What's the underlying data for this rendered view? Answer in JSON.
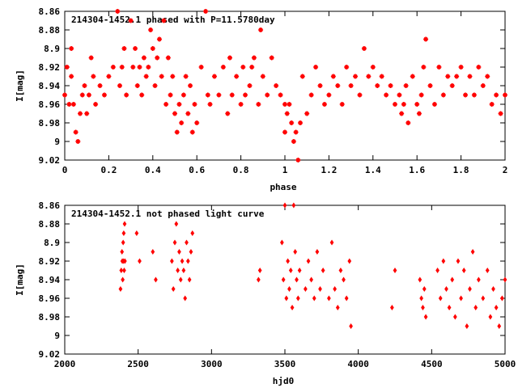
{
  "chart_data": [
    {
      "type": "scatter",
      "title": "214304-1452.1 phased with P=11.5780day",
      "xlabel": "phase",
      "ylabel": "I[mag]",
      "xlim": [
        0,
        2
      ],
      "ylim": [
        9.02,
        8.86
      ],
      "y_inverted": true,
      "grid": false,
      "marker": "plus",
      "color": "#ff0000",
      "xticks": [
        0,
        0.2,
        0.4,
        0.6,
        0.8,
        1,
        1.2,
        1.4,
        1.6,
        1.8,
        2
      ],
      "xtick_labels": [
        "0",
        "0.2",
        "0.4",
        "0.6",
        "0.8",
        "1",
        "1.2",
        "1.4",
        "1.6",
        "1.8",
        "2"
      ],
      "yticks": [
        8.86,
        8.88,
        8.9,
        8.92,
        8.94,
        8.96,
        8.98,
        9,
        9.02
      ],
      "ytick_labels": [
        "8.86",
        "8.88",
        "8.9",
        "8.92",
        "8.94",
        "8.96",
        "8.98",
        "9",
        "9.02"
      ],
      "x": [
        0.0,
        0.01,
        0.02,
        0.03,
        0.03,
        0.04,
        0.05,
        0.06,
        0.07,
        0.08,
        0.09,
        0.1,
        0.11,
        0.12,
        0.13,
        0.14,
        0.16,
        0.18,
        0.2,
        0.22,
        0.24,
        0.25,
        0.26,
        0.27,
        0.28,
        0.3,
        0.31,
        0.32,
        0.33,
        0.34,
        0.35,
        0.36,
        0.37,
        0.38,
        0.39,
        0.4,
        0.41,
        0.42,
        0.43,
        0.44,
        0.45,
        0.46,
        0.47,
        0.48,
        0.49,
        0.5,
        0.51,
        0.52,
        0.53,
        0.54,
        0.55,
        0.56,
        0.57,
        0.58,
        0.59,
        0.6,
        0.62,
        0.64,
        0.65,
        0.66,
        0.68,
        0.7,
        0.72,
        0.74,
        0.75,
        0.76,
        0.78,
        0.8,
        0.81,
        0.82,
        0.84,
        0.85,
        0.86,
        0.88,
        0.89,
        0.9,
        0.92,
        0.94,
        0.96,
        0.98,
        1.0,
        1.0,
        1.01,
        1.02,
        1.03,
        1.04,
        1.05,
        1.06,
        1.07,
        1.08,
        1.1,
        1.12,
        1.14,
        1.16,
        1.18,
        1.2,
        1.22,
        1.24,
        1.26,
        1.28,
        1.3,
        1.32,
        1.34,
        1.36,
        1.38,
        1.4,
        1.42,
        1.44,
        1.46,
        1.48,
        1.5,
        1.52,
        1.53,
        1.54,
        1.55,
        1.56,
        1.58,
        1.6,
        1.61,
        1.62,
        1.63,
        1.64,
        1.66,
        1.68,
        1.7,
        1.72,
        1.74,
        1.76,
        1.78,
        1.8,
        1.82,
        1.84,
        1.86,
        1.88,
        1.9,
        1.92,
        1.94,
        1.96,
        1.98,
        2.0
      ],
      "y": [
        8.95,
        8.92,
        8.96,
        8.9,
        8.93,
        8.96,
        8.99,
        9.0,
        8.97,
        8.95,
        8.94,
        8.97,
        8.95,
        8.91,
        8.93,
        8.96,
        8.94,
        8.95,
        8.93,
        8.92,
        8.86,
        8.94,
        8.92,
        8.9,
        8.95,
        8.87,
        8.92,
        8.9,
        8.94,
        8.92,
        8.95,
        8.91,
        8.93,
        8.92,
        8.88,
        8.9,
        8.94,
        8.91,
        8.89,
        8.93,
        8.87,
        8.96,
        8.91,
        8.95,
        8.93,
        8.97,
        8.99,
        8.96,
        8.98,
        8.95,
        8.93,
        8.97,
        8.94,
        8.99,
        8.96,
        8.98,
        8.92,
        8.86,
        8.95,
        8.96,
        8.93,
        8.95,
        8.92,
        8.97,
        8.91,
        8.95,
        8.93,
        8.96,
        8.92,
        8.95,
        8.94,
        8.92,
        8.91,
        8.96,
        8.88,
        8.93,
        8.95,
        8.91,
        8.94,
        8.95,
        8.96,
        8.99,
        8.97,
        8.96,
        8.98,
        9.0,
        8.99,
        9.02,
        8.98,
        8.93,
        8.97,
        8.95,
        8.92,
        8.94,
        8.96,
        8.95,
        8.93,
        8.94,
        8.96,
        8.92,
        8.94,
        8.93,
        8.95,
        8.9,
        8.93,
        8.92,
        8.94,
        8.93,
        8.95,
        8.94,
        8.96,
        8.95,
        8.97,
        8.96,
        8.94,
        8.98,
        8.93,
        8.96,
        8.97,
        8.95,
        8.92,
        8.89,
        8.94,
        8.96,
        8.92,
        8.95,
        8.93,
        8.94,
        8.93,
        8.92,
        8.95,
        8.93,
        8.95,
        8.92,
        8.94,
        8.93,
        8.96,
        8.95,
        8.97,
        8.95
      ]
    },
    {
      "type": "scatter",
      "title": "214304-1452.1 not phased light curve",
      "xlabel": "hjd0",
      "ylabel": "I[mag]",
      "xlim": [
        2000,
        5000
      ],
      "ylim": [
        9.02,
        8.86
      ],
      "y_inverted": true,
      "grid": false,
      "marker": "diamond",
      "color": "#ff0000",
      "xticks": [
        2000,
        2500,
        3000,
        3500,
        4000,
        4500,
        5000
      ],
      "xtick_labels": [
        "2000",
        "2500",
        "3000",
        "3500",
        "4000",
        "4500",
        "5000"
      ],
      "yticks": [
        8.86,
        8.88,
        8.9,
        8.92,
        8.94,
        8.96,
        8.98,
        9,
        9.02
      ],
      "ytick_labels": [
        "8.86",
        "8.88",
        "8.9",
        "8.92",
        "8.94",
        "8.96",
        "8.98",
        "9",
        "9.02"
      ],
      "x": [
        2380,
        2385,
        2390,
        2392,
        2395,
        2398,
        2400,
        2402,
        2405,
        2408,
        2410,
        2490,
        2510,
        2600,
        2620,
        2730,
        2740,
        2750,
        2760,
        2770,
        2780,
        2790,
        2800,
        2810,
        2820,
        2830,
        2840,
        2850,
        2860,
        2870,
        3320,
        3330,
        3480,
        3490,
        3500,
        3510,
        3520,
        3530,
        3540,
        3550,
        3560,
        3570,
        3580,
        3590,
        3600,
        3640,
        3660,
        3680,
        3700,
        3720,
        3740,
        3760,
        3800,
        3820,
        3840,
        3860,
        3880,
        3900,
        3920,
        3940,
        3950,
        4230,
        4250,
        4420,
        4430,
        4440,
        4450,
        4460,
        4540,
        4560,
        4580,
        4600,
        4620,
        4640,
        4660,
        4680,
        4700,
        4720,
        4740,
        4760,
        4780,
        4800,
        4820,
        4850,
        4880,
        4900,
        4920,
        4940,
        4960,
        4980,
        5000
      ],
      "y": [
        8.95,
        8.93,
        8.91,
        8.92,
        8.94,
        8.9,
        8.92,
        8.89,
        8.93,
        8.88,
        8.92,
        8.89,
        8.92,
        8.91,
        8.94,
        8.92,
        8.95,
        8.9,
        8.88,
        8.93,
        8.91,
        8.94,
        8.92,
        8.93,
        8.96,
        8.9,
        8.92,
        8.94,
        8.91,
        8.89,
        8.94,
        8.93,
        8.9,
        8.94,
        8.86,
        8.96,
        8.92,
        8.95,
        8.93,
        8.97,
        8.86,
        8.91,
        8.94,
        8.96,
        8.93,
        8.95,
        8.92,
        8.94,
        8.96,
        8.91,
        8.95,
        8.93,
        8.96,
        8.9,
        8.95,
        8.97,
        8.93,
        8.94,
        8.96,
        8.92,
        8.99,
        8.97,
        8.93,
        8.94,
        8.96,
        8.97,
        8.95,
        8.98,
        8.93,
        8.96,
        8.92,
        8.95,
        8.97,
        8.94,
        8.98,
        8.92,
        8.96,
        8.93,
        8.99,
        8.95,
        8.91,
        8.97,
        8.94,
        8.96,
        8.93,
        8.98,
        8.95,
        8.97,
        8.99,
        8.96,
        8.94
      ]
    }
  ]
}
